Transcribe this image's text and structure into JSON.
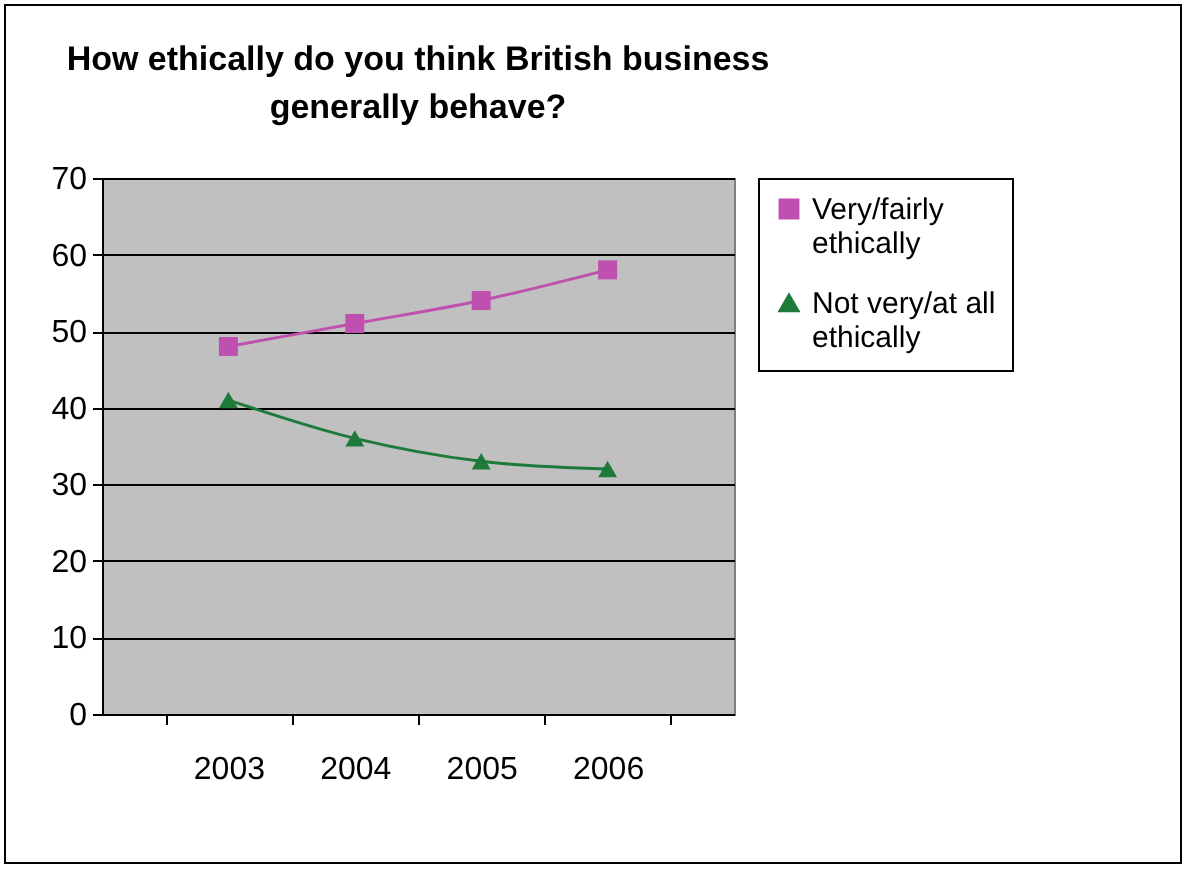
{
  "chart_data": {
    "type": "line",
    "title": "How ethically do you think British business generally behave?",
    "categories": [
      "2003",
      "2004",
      "2005",
      "2006"
    ],
    "series": [
      {
        "name": "Very/fairly ethically",
        "color": "#c050b0",
        "marker": "square",
        "values": [
          48,
          51,
          54,
          58
        ]
      },
      {
        "name": "Not very/at all ethically",
        "color": "#1e7a3a",
        "marker": "triangle",
        "values": [
          41,
          36,
          33,
          32
        ]
      }
    ],
    "ylim": [
      0,
      70
    ],
    "yticks": [
      0,
      10,
      20,
      30,
      40,
      50,
      60,
      70
    ],
    "grid": "y",
    "legend": "right"
  }
}
